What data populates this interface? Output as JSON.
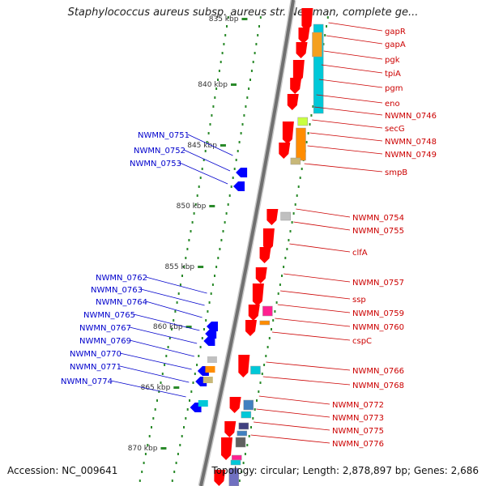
{
  "title": "Staphylococcus aureus subsp. aureus str. Newman, complete ge...",
  "footer": {
    "accession": "Accession: NC_009641",
    "topology": "Topology: circular; Length: 2,878,897 bp; Genes: 2,686"
  },
  "colors": {
    "plus_strand_gene": "#ff0000",
    "minus_strand_gene": "#0000ff",
    "label_right": "#cc0000",
    "label_left": "#0000cc",
    "tick": "#2a8a2a",
    "backbone": "#808080"
  },
  "kbp_ticks": [
    {
      "label": "835 kbp",
      "kbp": 835
    },
    {
      "label": "840 kbp",
      "kbp": 840
    },
    {
      "label": "845 kbp",
      "kbp": 845
    },
    {
      "label": "850 kbp",
      "kbp": 850
    },
    {
      "label": "855 kbp",
      "kbp": 855
    },
    {
      "label": "860 kbp",
      "kbp": 860
    },
    {
      "label": "865 kbp",
      "kbp": 865
    },
    {
      "label": "870 kbp",
      "kbp": 870
    }
  ],
  "right_genes": [
    "gapR",
    "gapA",
    "pgk",
    "tpiA",
    "pgm",
    "eno",
    "NWMN_0746",
    "secG",
    "NWMN_0748",
    "NWMN_0749",
    "smpB",
    "NWMN_0754",
    "NWMN_0755",
    "clfA",
    "NWMN_0757",
    "ssp",
    "NWMN_0759",
    "NWMN_0760",
    "cspC",
    "NWMN_0766",
    "NWMN_0768",
    "NWMN_0772",
    "NWMN_0773",
    "NWMN_0775",
    "NWMN_0776"
  ],
  "left_genes": [
    "NWMN_0751",
    "NWMN_0752",
    "NWMN_0753",
    "NWMN_0762",
    "NWMN_0763",
    "NWMN_0764",
    "NWMN_0765",
    "NWMN_0767",
    "NWMN_0769",
    "NWMN_0770",
    "NWMN_0771",
    "NWMN_0774"
  ]
}
